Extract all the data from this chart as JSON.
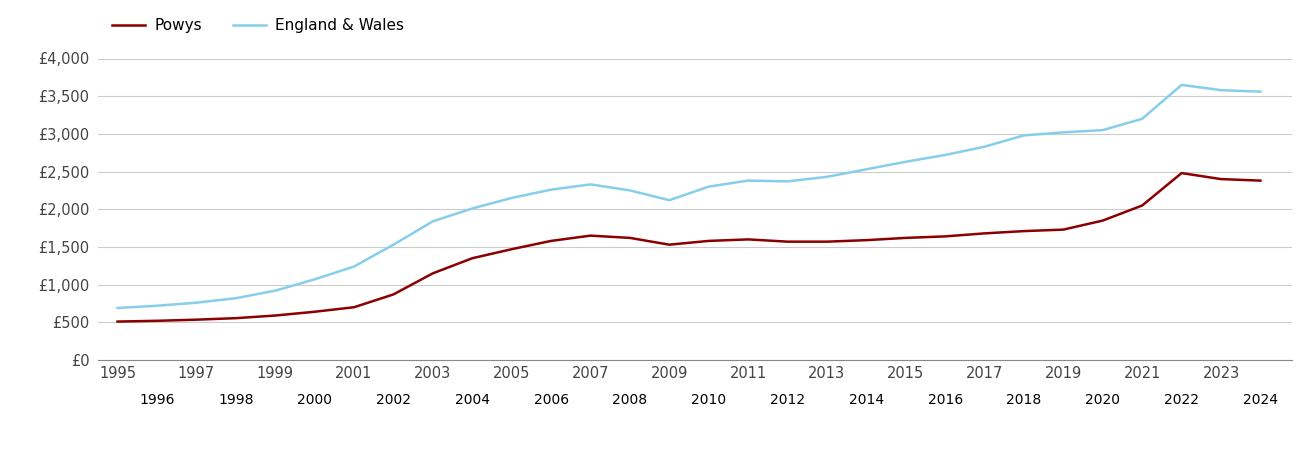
{
  "years": [
    1995,
    1996,
    1997,
    1998,
    1999,
    2000,
    2001,
    2002,
    2003,
    2004,
    2005,
    2006,
    2007,
    2008,
    2009,
    2010,
    2011,
    2012,
    2013,
    2014,
    2015,
    2016,
    2017,
    2018,
    2019,
    2020,
    2021,
    2022,
    2023,
    2024
  ],
  "powys": [
    510,
    520,
    535,
    555,
    590,
    640,
    700,
    870,
    1150,
    1350,
    1470,
    1580,
    1650,
    1620,
    1530,
    1580,
    1600,
    1570,
    1570,
    1590,
    1620,
    1640,
    1680,
    1710,
    1730,
    1850,
    2050,
    2480,
    2400,
    2380
  ],
  "england_wales": [
    690,
    720,
    760,
    820,
    920,
    1070,
    1240,
    1530,
    1840,
    2010,
    2150,
    2260,
    2330,
    2250,
    2120,
    2300,
    2380,
    2370,
    2430,
    2530,
    2630,
    2720,
    2830,
    2980,
    3020,
    3050,
    3200,
    3650,
    3580,
    3560
  ],
  "powys_color": "#8B0000",
  "england_wales_color": "#87CEEB",
  "background_color": "#ffffff",
  "grid_color": "#cccccc",
  "ylim": [
    0,
    4000
  ],
  "yticks": [
    0,
    500,
    1000,
    1500,
    2000,
    2500,
    3000,
    3500,
    4000
  ],
  "ytick_labels": [
    "£0",
    "£500",
    "£1,000",
    "£1,500",
    "£2,000",
    "£2,500",
    "£3,000",
    "£3,500",
    "£4,000"
  ],
  "legend_powys": "Powys",
  "legend_ew": "England & Wales",
  "line_width": 1.8,
  "odd_years": [
    1995,
    1997,
    1999,
    2001,
    2003,
    2005,
    2007,
    2009,
    2011,
    2013,
    2015,
    2017,
    2019,
    2021,
    2023
  ],
  "even_years": [
    1996,
    1998,
    2000,
    2002,
    2004,
    2006,
    2008,
    2010,
    2012,
    2014,
    2016,
    2018,
    2020,
    2022,
    2024
  ]
}
